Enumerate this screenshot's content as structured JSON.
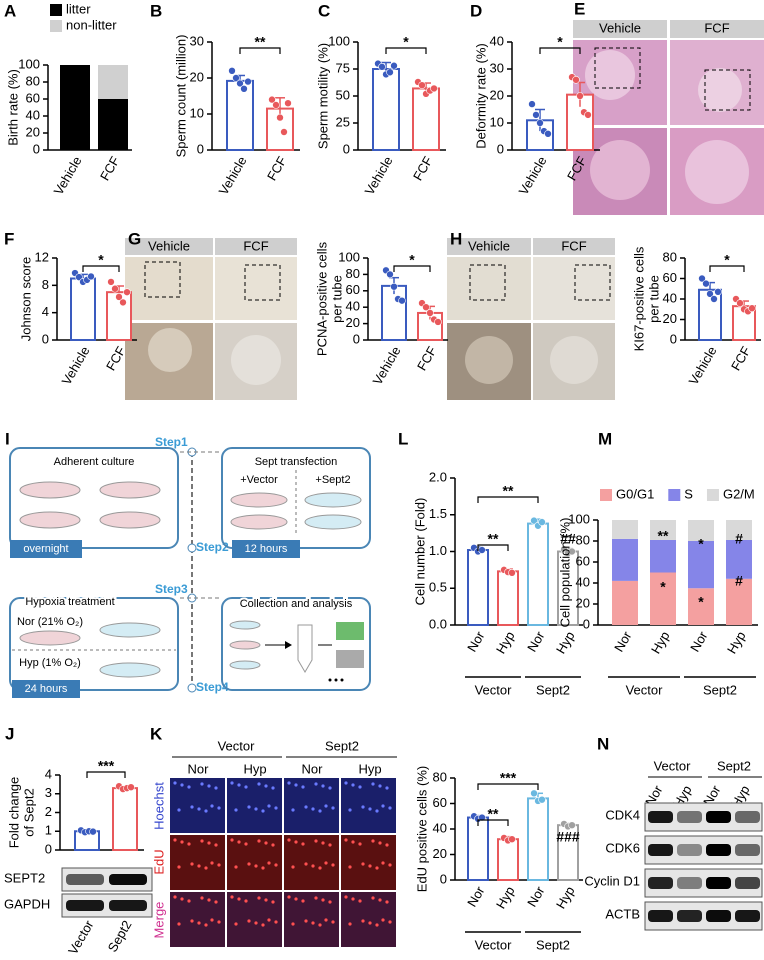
{
  "chart_data": [
    {
      "type": "stacked_bar",
      "label": "A",
      "ylabel": "Birth rate (%)",
      "categories": [
        "Vehicle",
        "FCF"
      ],
      "series": [
        {
          "name": "litter",
          "color": "#000000",
          "values": [
            100,
            60
          ]
        },
        {
          "name": "non-litter",
          "color": "#d0d0d0",
          "values": [
            0,
            40
          ]
        }
      ],
      "ylim": [
        0,
        100
      ],
      "yticks": [
        0,
        20,
        40,
        60,
        80,
        100
      ]
    },
    {
      "type": "dot_bar",
      "label": "B",
      "ylabel": "Sperm count (million)",
      "categories": [
        "Vehicle",
        "FCF"
      ],
      "colors": [
        "#3a5bbf",
        "#e8585b"
      ],
      "values": [
        19.2,
        11.5
      ],
      "errors": [
        1.5,
        3.0
      ],
      "points": [
        [
          22,
          20,
          18.5,
          17,
          19
        ],
        [
          14,
          12.5,
          9,
          5,
          13
        ]
      ],
      "annotations": [
        "**"
      ],
      "ylim": [
        0,
        30
      ],
      "yticks": [
        0,
        10,
        20,
        30
      ]
    },
    {
      "type": "dot_bar",
      "label": "C",
      "ylabel": "Sperm motility (%)",
      "categories": [
        "Vehicle",
        "FCF"
      ],
      "colors": [
        "#3a5bbf",
        "#e8585b"
      ],
      "values": [
        75,
        57
      ],
      "errors": [
        6,
        5
      ],
      "points": [
        [
          80,
          77,
          70,
          72,
          78
        ],
        [
          63,
          60,
          52,
          55,
          57
        ]
      ],
      "annotations": [
        "*"
      ],
      "ylim": [
        0,
        100
      ],
      "yticks": [
        0,
        25,
        50,
        75,
        100
      ]
    },
    {
      "type": "dot_bar",
      "label": "D",
      "ylabel": "Deformity rate (%)",
      "categories": [
        "Vehicle",
        "FCF"
      ],
      "colors": [
        "#3a5bbf",
        "#e8585b"
      ],
      "values": [
        11,
        20.5
      ],
      "errors": [
        4,
        4.5
      ],
      "points": [
        [
          17,
          13,
          10,
          7,
          6
        ],
        [
          27,
          26,
          20,
          14,
          13
        ]
      ],
      "annotations": [
        "*"
      ],
      "ylim": [
        0,
        40
      ],
      "yticks": [
        0,
        10,
        20,
        30,
        40
      ]
    },
    {
      "type": "dot_bar",
      "label": "F",
      "ylabel": "Johnson score",
      "categories": [
        "Vehicle",
        "FCF"
      ],
      "colors": [
        "#3a5bbf",
        "#e8585b"
      ],
      "values": [
        9,
        7
      ],
      "errors": [
        0.6,
        0.9
      ],
      "points": [
        [
          9.8,
          9.2,
          8.5,
          8.8,
          9.3
        ],
        [
          8.5,
          7.5,
          6.3,
          5.5,
          7
        ]
      ],
      "annotations": [
        "*"
      ],
      "ylim": [
        0,
        12
      ],
      "yticks": [
        0,
        4,
        8,
        12
      ]
    },
    {
      "type": "dot_bar",
      "label": "G",
      "ylabel": [
        "PCNA-positive cells",
        "per tube"
      ],
      "categories": [
        "Vehicle",
        "FCF"
      ],
      "colors": [
        "#3a5bbf",
        "#e8585b"
      ],
      "values": [
        66,
        33
      ],
      "errors": [
        10,
        8
      ],
      "points": [
        [
          85,
          80,
          65,
          50,
          48
        ],
        [
          45,
          40,
          33,
          25,
          22
        ]
      ],
      "annotations": [
        "*"
      ],
      "ylim": [
        0,
        100
      ],
      "yticks": [
        0,
        20,
        40,
        60,
        80,
        100
      ]
    },
    {
      "type": "dot_bar",
      "label": "H",
      "ylabel": [
        "KI67-positive cells",
        "per tube"
      ],
      "categories": [
        "Vehicle",
        "FCF"
      ],
      "colors": [
        "#3a5bbf",
        "#e8585b"
      ],
      "values": [
        49,
        33
      ],
      "errors": [
        7,
        5
      ],
      "points": [
        [
          60,
          55,
          45,
          40,
          47
        ],
        [
          40,
          36,
          30,
          28,
          31
        ]
      ],
      "annotations": [
        "*"
      ],
      "ylim": [
        0,
        80
      ],
      "yticks": [
        0,
        20,
        40,
        60,
        80
      ]
    },
    {
      "type": "dot_bar",
      "label": "L",
      "ylabel": "Cell number (Fold)",
      "categories": [
        "Nor",
        "Hyp",
        "Nor",
        "Hyp"
      ],
      "groups": [
        "Vector",
        "Sept2"
      ],
      "colors": [
        "#3a5bbf",
        "#e8585b",
        "#6ab8e0",
        "#a0a0a0"
      ],
      "values": [
        1.02,
        0.73,
        1.38,
        1.0
      ],
      "errors": [
        0.04,
        0.03,
        0.06,
        0.04
      ],
      "points": [
        [
          1.05,
          1.0,
          1.02
        ],
        [
          0.75,
          0.72,
          0.71
        ],
        [
          1.42,
          1.35,
          1.4
        ],
        [
          1.03,
          0.98,
          1.0
        ]
      ],
      "annotations": [
        "**",
        "**",
        "##"
      ],
      "ylim": [
        0,
        2
      ],
      "yticks": [
        {
          "value": 0,
          "label": "0.0"
        },
        {
          "value": 0.5,
          "label": "0.5"
        },
        {
          "value": 1,
          "label": "1.0"
        },
        {
          "value": 1.5,
          "label": "1.5"
        },
        {
          "value": 2,
          "label": "2.0"
        }
      ]
    },
    {
      "type": "stacked_bar",
      "label": "M",
      "ylabel": "Cell population (%)",
      "categories": [
        "Nor",
        "Hyp",
        "Nor",
        "Hyp"
      ],
      "groups": [
        "Vector",
        "Sept2"
      ],
      "series": [
        {
          "name": "G0/G1",
          "color": "#f4a0a0",
          "values": [
            42,
            50,
            35,
            44
          ]
        },
        {
          "name": "S",
          "color": "#8585e8",
          "values": [
            40,
            31,
            45,
            37
          ]
        },
        {
          "name": "G2/M",
          "color": "#d9d9d9",
          "values": [
            18,
            19,
            20,
            19
          ]
        }
      ],
      "annotations": [
        "**",
        "*",
        "*",
        "*",
        "#",
        "#"
      ],
      "ylim": [
        0,
        100
      ],
      "yticks": [
        0,
        20,
        40,
        60,
        80,
        100
      ]
    },
    {
      "type": "dot_bar",
      "label": "J",
      "ylabel": [
        "Fold change",
        "of Sept2"
      ],
      "categories": [
        "Vector",
        "Sept2"
      ],
      "colors": [
        "#3a5bbf",
        "#e8585b"
      ],
      "values": [
        1.0,
        3.3
      ],
      "errors": [
        0.08,
        0.1
      ],
      "points": [
        [
          1.05,
          0.95,
          1.0,
          0.98
        ],
        [
          3.4,
          3.25,
          3.3,
          3.35
        ]
      ],
      "annotations": [
        "***"
      ],
      "ylim": [
        0,
        4
      ],
      "yticks": [
        0,
        1,
        2,
        3,
        4
      ],
      "blot": [
        "SEPT2",
        "GAPDH"
      ]
    },
    {
      "type": "dot_bar",
      "label": "K",
      "ylabel": "EdU positive cells (%)",
      "categories": [
        "Nor",
        "Hyp",
        "Nor",
        "Hyp"
      ],
      "groups": [
        "Vector",
        "Sept2"
      ],
      "colors": [
        "#3a5bbf",
        "#e8585b",
        "#6ab8e0",
        "#a0a0a0"
      ],
      "values": [
        49,
        32,
        64,
        43
      ],
      "errors": [
        1.5,
        2,
        4,
        1.5
      ],
      "points": [
        [
          50,
          48,
          49
        ],
        [
          33,
          31,
          32
        ],
        [
          68,
          62,
          63
        ],
        [
          44,
          42,
          43
        ]
      ],
      "annotations": [
        "***",
        "**",
        "###"
      ],
      "ylim": [
        0,
        80
      ],
      "yticks": [
        0,
        20,
        40,
        60,
        80
      ]
    }
  ],
  "images": {
    "E": {
      "label": "E",
      "columns": [
        "Vehicle",
        "FCF"
      ]
    },
    "G": {
      "columns": [
        "Vehicle",
        "FCF"
      ]
    },
    "H": {
      "columns": [
        "Vehicle",
        "FCF"
      ]
    },
    "K": {
      "groups": [
        "Vector",
        "Sept2"
      ],
      "columns": [
        "Nor",
        "Hyp",
        "Nor",
        "Hyp"
      ],
      "rows": [
        "Hoechst",
        "EdU",
        "Merge"
      ]
    }
  },
  "diagram": {
    "label": "I",
    "steps": [
      "Step1",
      "Step2",
      "Step3",
      "Step4"
    ],
    "adherent": {
      "title": "Adherent culture",
      "time": "overnight"
    },
    "transfection": {
      "title": "Sept transfection",
      "left": "+Vector",
      "right": "+Sept2",
      "time": "12 hours"
    },
    "hypoxia": {
      "title": "Hypoxia treatment",
      "nor": "Nor (21% O₂)",
      "hyp": "Hyp (1% O₂)",
      "time": "24 hours"
    },
    "collection": {
      "title": "Collection and analysis"
    }
  },
  "western": {
    "label": "N",
    "groups": [
      "Vector",
      "Sept2"
    ],
    "columns": [
      "Nor",
      "Hyp",
      "Nor",
      "Hyp"
    ],
    "rows": [
      "CDK4",
      "CDK6",
      "Cyclin D1",
      "ACTB"
    ]
  }
}
